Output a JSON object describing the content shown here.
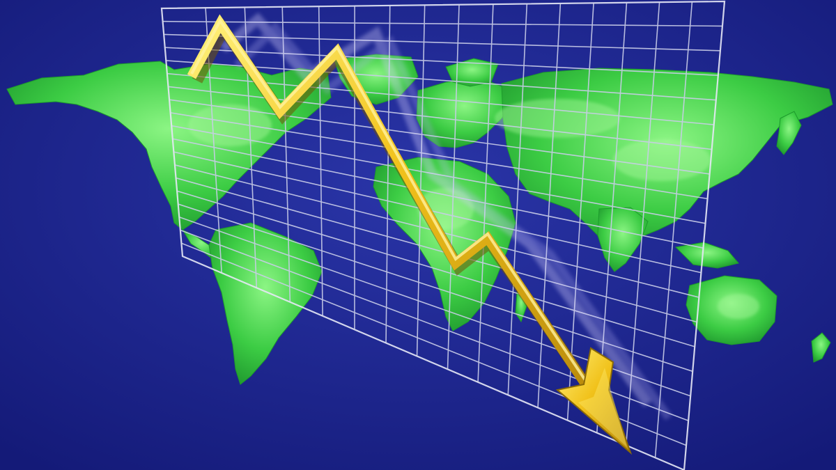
{
  "scene": {
    "subject": "world-map-with-falling-trend-arrow",
    "colors": {
      "ocean_light": "#2a35a8",
      "ocean_dark": "#141a78",
      "land_light": "#7cf07a",
      "land": "#2fbf3c",
      "land_dark": "#1a8f2a",
      "grid_line": "#c9cde8",
      "arrow": "#f1c21b",
      "arrow_highlight": "#fff07a",
      "arrow_shadow": "#8a6a08"
    },
    "icons": {
      "map": "world-map-icon",
      "trend": "falling-trend-arrow-icon"
    }
  }
}
